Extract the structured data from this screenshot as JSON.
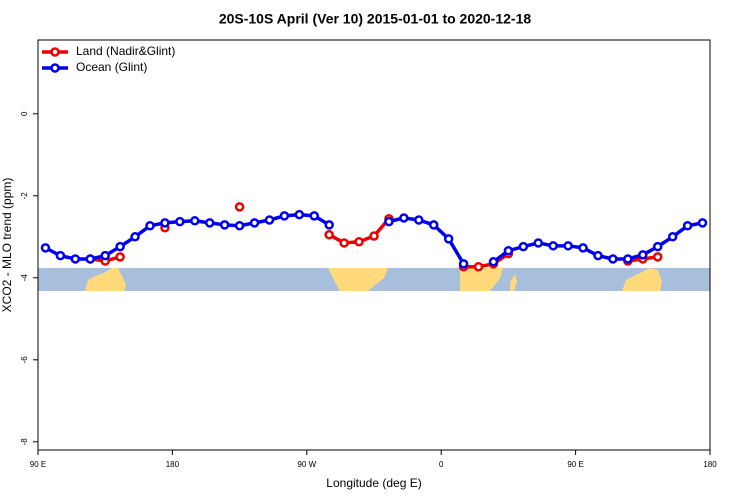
{
  "chart_data": {
    "type": "line",
    "title": "20S-10S April (Ver 10)   2015-01-01 to 2020-12-18",
    "x_label": "Longitude (deg E)",
    "y_label": "XCO2 - MLO trend (ppm)",
    "x": [
      95,
      105,
      115,
      125,
      135,
      145,
      155,
      165,
      175,
      185,
      195,
      205,
      215,
      225,
      235,
      245,
      255,
      265,
      275,
      285,
      295,
      305,
      315,
      325,
      335,
      345,
      355,
      365,
      375,
      385,
      395,
      405,
      415,
      425,
      435,
      445,
      455,
      465,
      475,
      485,
      495,
      505,
      515,
      525,
      535
    ],
    "series": [
      {
        "name": "Land (Nadir&Glint)",
        "color": "#ee0000",
        "values": [
          null,
          null,
          null,
          -3.54,
          -3.59,
          -3.49,
          null,
          null,
          -2.78,
          null,
          null,
          null,
          null,
          -2.27,
          null,
          null,
          null,
          null,
          null,
          -2.95,
          -3.15,
          -3.12,
          -2.98,
          -2.56,
          null,
          null,
          null,
          null,
          -3.73,
          -3.73,
          -3.66,
          -3.41,
          null,
          null,
          null,
          null,
          null,
          null,
          null,
          -3.59,
          -3.54,
          -3.49,
          null,
          null,
          null
        ]
      },
      {
        "name": "Ocean (Glint)",
        "color": "#0000ee",
        "values": [
          -3.27,
          -3.46,
          -3.54,
          -3.54,
          -3.46,
          -3.24,
          -3.0,
          -2.73,
          -2.66,
          -2.63,
          -2.61,
          -2.66,
          -2.71,
          -2.73,
          -2.66,
          -2.59,
          -2.49,
          -2.46,
          -2.49,
          -2.71,
          null,
          null,
          null,
          -2.63,
          -2.54,
          -2.59,
          -2.71,
          -3.05,
          -3.66,
          null,
          -3.61,
          -3.34,
          -3.24,
          -3.15,
          -3.22,
          -3.22,
          -3.27,
          -3.46,
          -3.54,
          -3.54,
          -3.44,
          -3.24,
          -3.0,
          -2.73,
          -2.66
        ]
      }
    ],
    "xlim": [
      90,
      540
    ],
    "xticks": [
      {
        "value": 90,
        "label": "90 E"
      },
      180,
      {
        "value": 270,
        "label": "90 W"
      },
      {
        "value": 360,
        "label": "0"
      },
      {
        "value": 450,
        "label": "90 E"
      },
      {
        "value": 540,
        "label": "180"
      }
    ],
    "ylim": [
      -8.2,
      1.8
    ],
    "yticks": [
      0,
      -2,
      -4,
      -6,
      -8
    ],
    "legend": "top-left"
  }
}
